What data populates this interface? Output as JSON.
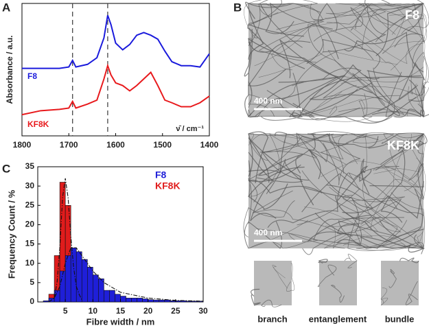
{
  "panel_labels": [
    "A",
    "B",
    "C"
  ],
  "chart_data": [
    {
      "type": "line",
      "y_label": "Absorbance / a.u.",
      "x_label": "ν̄ / cm⁻¹",
      "x": [
        1800,
        1760,
        1720,
        1700,
        1692,
        1685,
        1660,
        1640,
        1625,
        1617,
        1610,
        1600,
        1585,
        1570,
        1555,
        1540,
        1525,
        1510,
        1495,
        1480,
        1460,
        1440,
        1420,
        1400
      ],
      "series": [
        {
          "name": "F8",
          "color": "#1a1adc",
          "values": [
            0.51,
            0.51,
            0.51,
            0.52,
            0.57,
            0.52,
            0.54,
            0.59,
            0.74,
            0.91,
            0.84,
            0.7,
            0.65,
            0.69,
            0.76,
            0.78,
            0.76,
            0.73,
            0.64,
            0.56,
            0.53,
            0.53,
            0.52,
            0.62
          ]
        },
        {
          "name": "KF8K",
          "color": "#e8191c",
          "values": [
            0.16,
            0.19,
            0.2,
            0.21,
            0.26,
            0.21,
            0.24,
            0.27,
            0.43,
            0.53,
            0.46,
            0.4,
            0.38,
            0.34,
            0.38,
            0.43,
            0.48,
            0.38,
            0.27,
            0.25,
            0.22,
            0.22,
            0.25,
            0.3
          ]
        }
      ],
      "vlines": [
        1692,
        1617
      ],
      "xlim": [
        1800,
        1400
      ],
      "xticks": [
        1800,
        1700,
        1600,
        1500,
        1400
      ],
      "ylim": [
        0,
        1
      ]
    },
    {
      "type": "histogram",
      "y_label": "Frequency Count / %",
      "x_label": "Fibre width / nm",
      "bins": [
        1,
        2,
        3,
        4,
        5,
        6,
        7,
        8,
        9,
        10,
        11,
        12,
        13,
        14,
        15,
        16,
        17,
        18,
        19,
        20,
        21,
        22,
        23,
        24,
        25,
        26,
        27,
        28,
        29,
        30
      ],
      "series": [
        {
          "name": "F8",
          "color": "#1f1fd8",
          "values": [
            0.3,
            1,
            3,
            8,
            12,
            14,
            13,
            11,
            9,
            7,
            6,
            3,
            3,
            2,
            1.5,
            1,
            1,
            1,
            0.8,
            0.6,
            0.5,
            0.5,
            0.5,
            0.3,
            0.3,
            0.3,
            0.2,
            0.2,
            0.2
          ]
        },
        {
          "name": "KF8K",
          "color": "#e01c1c",
          "values": [
            0,
            2,
            12,
            31,
            25,
            6,
            2,
            1,
            0,
            0,
            0,
            0,
            0,
            0,
            0,
            0,
            0,
            0,
            0,
            0,
            0,
            0,
            0,
            0,
            0,
            0,
            0,
            0,
            0
          ]
        }
      ],
      "fits": [
        {
          "x": [
            3,
            3.5,
            4,
            4.5,
            5,
            5.5,
            6,
            6.5,
            7,
            7.5,
            8
          ],
          "values": [
            1,
            5,
            14,
            27,
            32,
            27,
            17,
            9,
            4,
            2,
            0.5
          ]
        },
        {
          "x": [
            2,
            3,
            4,
            5,
            6,
            7,
            8,
            10,
            12,
            15,
            20,
            25,
            30
          ],
          "values": [
            0,
            1,
            4,
            10,
            14,
            14,
            12,
            8,
            5,
            2.5,
            1,
            0.4,
            0.2
          ]
        }
      ],
      "xlim": [
        0,
        30
      ],
      "xticks": [
        5,
        10,
        15,
        20,
        25,
        30
      ],
      "ylim": [
        0,
        35
      ],
      "yticks": [
        0,
        5,
        10,
        15,
        20,
        25,
        30,
        35
      ]
    }
  ],
  "micrographs": [
    {
      "label": "F8",
      "scale_bar": "400 nm"
    },
    {
      "label": "KF8K",
      "scale_bar": "400 nm"
    }
  ],
  "insets": [
    "branch",
    "entanglement",
    "bundle"
  ]
}
